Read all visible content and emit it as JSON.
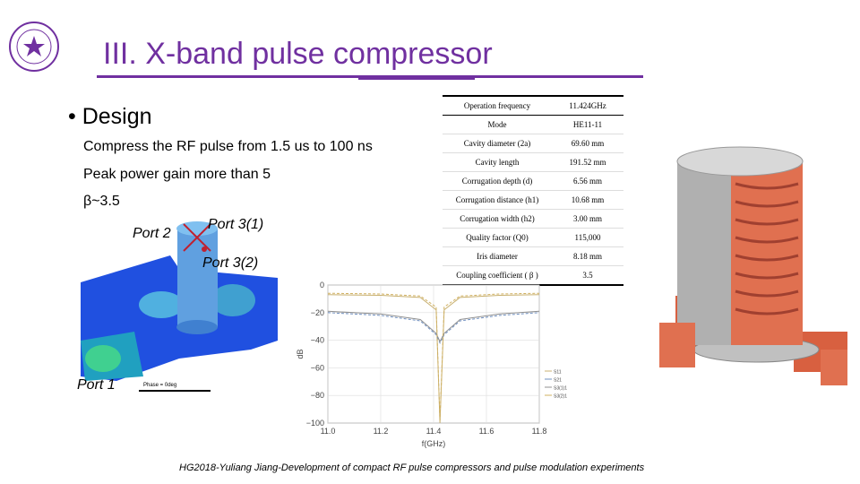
{
  "slide": {
    "title": "III. X-band pulse compressor",
    "bullet": "• Design",
    "lines": [
      "Compress the RF pulse from 1.5 us to 100 ns",
      "Peak power gain more than 5",
      "β~3.5"
    ],
    "ports": {
      "port2": "Port 2",
      "port3_1": "Port 3(1)",
      "port3_2": "Port 3(2)",
      "port1": "Port 1"
    },
    "sim_caption": "Phase = 0deg",
    "footer": "HG2018-Yuliang Jiang-Development of compact RF pulse compressors and pulse modulation experiments",
    "accent_color": "#7030a0"
  },
  "params_table": [
    {
      "name": "Operation frequency",
      "value": "11.424GHz"
    },
    {
      "name": "Mode",
      "value": "HE11-11"
    },
    {
      "name": "Cavity diameter (2a)",
      "value": "69.60 mm"
    },
    {
      "name": "Cavity length",
      "value": "191.52 mm"
    },
    {
      "name": "Corrugation depth (d)",
      "value": "6.56 mm"
    },
    {
      "name": "Corrugation distance (h1)",
      "value": "10.68 mm"
    },
    {
      "name": "Corrugation width (h2)",
      "value": "3.00 mm"
    },
    {
      "name": "Quality factor (Q0)",
      "value": "115,000"
    },
    {
      "name": "Iris diameter",
      "value": "8.18 mm"
    },
    {
      "name": "Coupling coefficient ( β )",
      "value": "3.5"
    }
  ],
  "chart_data": {
    "type": "line",
    "xlabel": "f(GHz)",
    "ylabel": "dB",
    "xlim": [
      11.0,
      11.8
    ],
    "ylim": [
      -100,
      0
    ],
    "xticks": [
      "11.0",
      "11.2",
      "11.4",
      "11.6",
      "11.8"
    ],
    "yticks": [
      "0",
      "−20",
      "−40",
      "−60",
      "−80",
      "−100"
    ],
    "grid": true,
    "legend_position": "right",
    "series": [
      {
        "name": "S11",
        "color": "#c8b070",
        "x": [
          11.0,
          11.2,
          11.35,
          11.41,
          11.424,
          11.44,
          11.5,
          11.65,
          11.8
        ],
        "y": [
          -7,
          -7.5,
          -9,
          -18,
          -100,
          -18,
          -9,
          -7.5,
          -7
        ]
      },
      {
        "name": "S21",
        "color": "#7090c0",
        "x": [
          11.0,
          11.2,
          11.35,
          11.41,
          11.424,
          11.44,
          11.5,
          11.65,
          11.8
        ],
        "y": [
          -20,
          -22,
          -26,
          -36,
          -42,
          -36,
          -26,
          -22,
          -20
        ]
      },
      {
        "name": "S3(1)1",
        "color": "#909090",
        "x": [
          11.0,
          11.2,
          11.35,
          11.41,
          11.424,
          11.44,
          11.5,
          11.65,
          11.8
        ],
        "y": [
          -19,
          -21,
          -25,
          -35,
          -41,
          -35,
          -25,
          -21,
          -19
        ]
      },
      {
        "name": "S3(2)1",
        "color": "#d0b060",
        "x": [
          11.0,
          11.2,
          11.35,
          11.41,
          11.424,
          11.44,
          11.5,
          11.65,
          11.8
        ],
        "y": [
          -6,
          -6.5,
          -8,
          -16,
          -98,
          -16,
          -8,
          -6.5,
          -6
        ]
      }
    ]
  }
}
